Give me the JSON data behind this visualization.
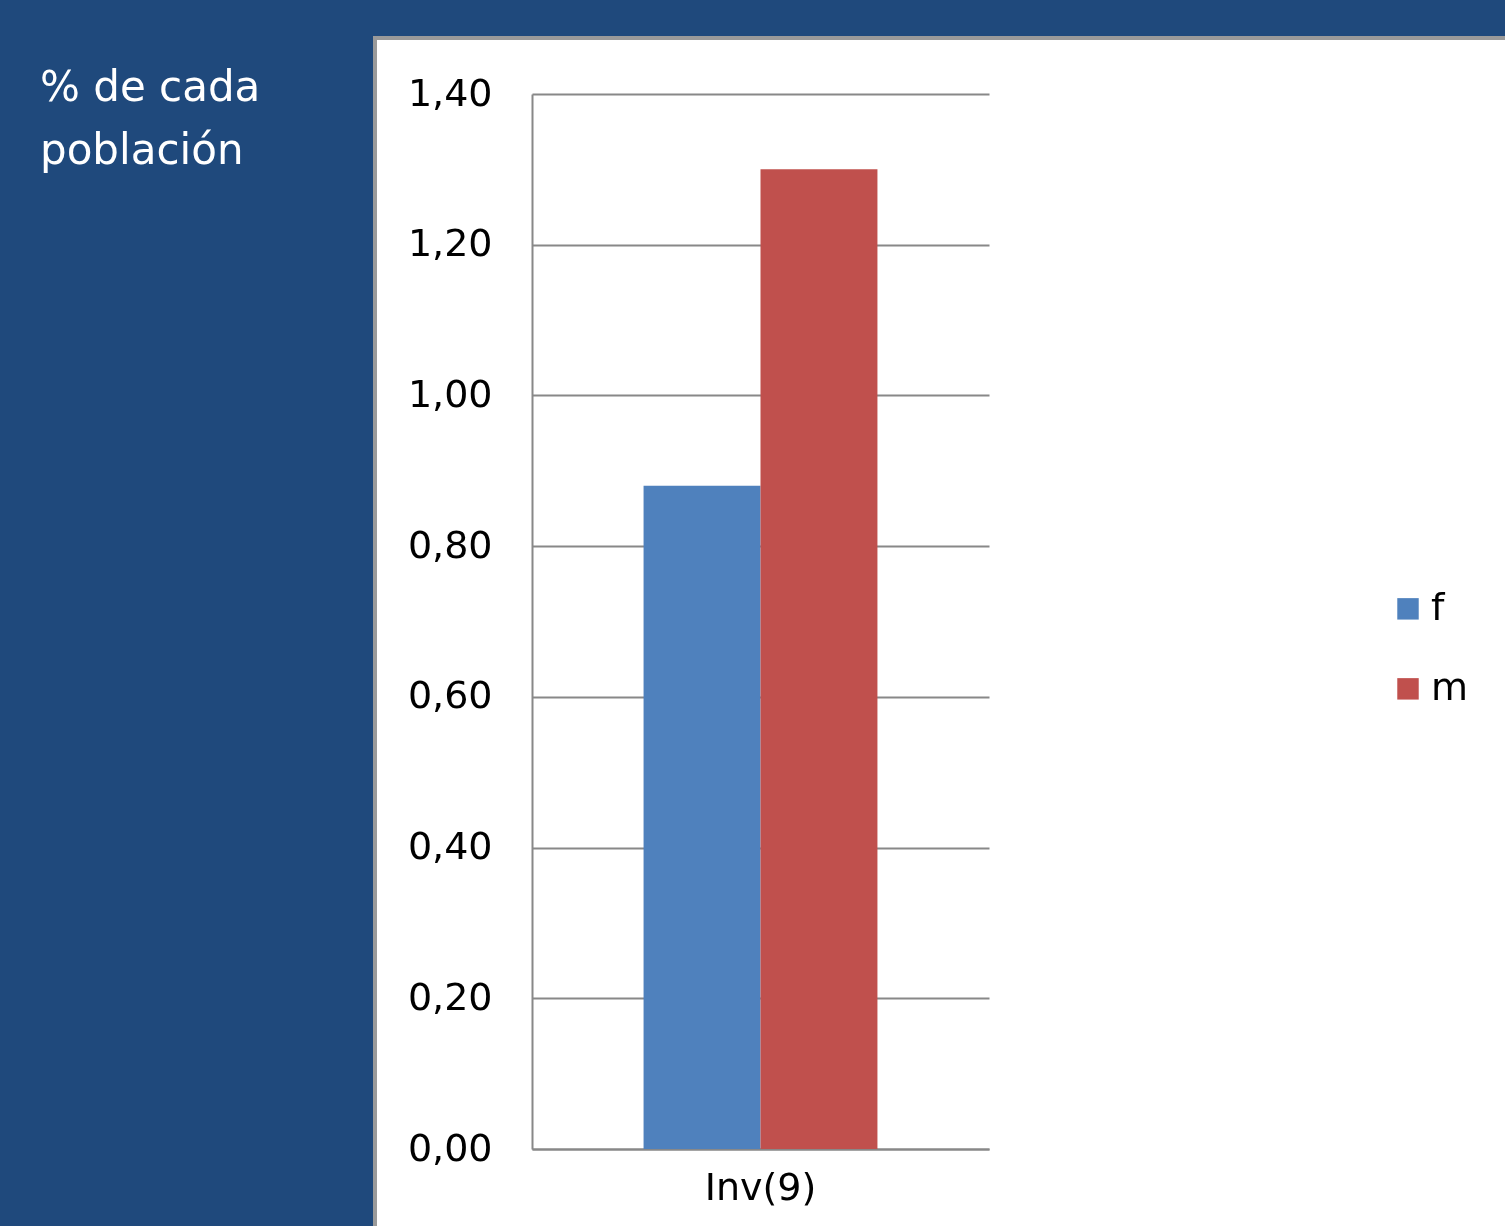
{
  "chart_data": {
    "type": "bar",
    "ylabel": "% de cada población",
    "categories": [
      "Inv(9)"
    ],
    "series": [
      {
        "name": "f",
        "color": "#4f81bd",
        "values": [
          0.88
        ]
      },
      {
        "name": "m",
        "color": "#c0504d",
        "values": [
          1.3
        ]
      }
    ],
    "ylim": [
      0,
      1.4
    ],
    "yticks": [
      {
        "value": 0,
        "label": "0,00"
      },
      {
        "value": 0.2,
        "label": "0,20"
      },
      {
        "value": 0.4,
        "label": "0,40"
      },
      {
        "value": 0.6,
        "label": "0,60"
      },
      {
        "value": 0.8,
        "label": "0,80"
      },
      {
        "value": 1,
        "label": "1,00"
      },
      {
        "value": 1.2,
        "label": "1,20"
      },
      {
        "value": 1.4,
        "label": "1,40"
      }
    ],
    "grid": "y",
    "legend": "right"
  }
}
